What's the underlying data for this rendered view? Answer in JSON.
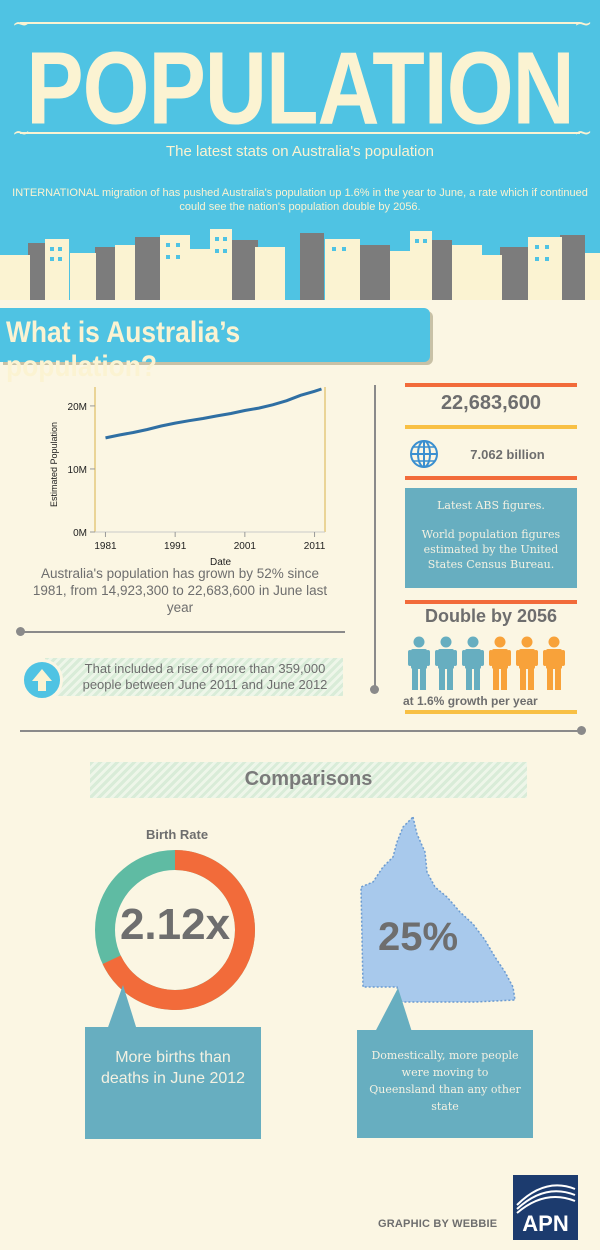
{
  "header": {
    "title": "POPULATION",
    "subtitle": "The latest stats on Australia's population",
    "intro": "INTERNATIONAL migration of has pushed Australia's population up 1.6% in the year to June, a rate which if continued could see the nation's population double by 2056."
  },
  "section": {
    "title": "What is Australia’s population?"
  },
  "chart_data": {
    "type": "line",
    "xlabel": "Date",
    "ylabel": "Estimated Population",
    "x_ticks": [
      "1981",
      "1991",
      "2001",
      "2011"
    ],
    "y_ticks": [
      "0M",
      "10M",
      "20M"
    ],
    "ylim": [
      0,
      23000000
    ],
    "xlim": [
      1979.5,
      2012.5
    ],
    "x": [
      1981,
      1983,
      1985,
      1987,
      1989,
      1991,
      1993,
      1995,
      1997,
      1999,
      2001,
      2003,
      2005,
      2007,
      2009,
      2011,
      2012
    ],
    "values": [
      14923300,
      15380000,
      15790000,
      16260000,
      16810000,
      17280000,
      17660000,
      18000000,
      18420000,
      18790000,
      19270000,
      19650000,
      20180000,
      20830000,
      21690000,
      22320000,
      22683600
    ],
    "series_color": "#2f6fa3"
  },
  "chart_caption": "Australia's population has grown by 52% since 1981, from 14,923,300 to 22,683,600 in June last year",
  "rise_text": "That included a rise of more than 359,000 people between June 2011 and June 2012",
  "stats": {
    "population": "22,683,600",
    "world_population": "7.062 billion",
    "note_line1": "Latest ABS figures.",
    "note_line2": "World population figures estimated by the United States Census Bureau.",
    "double_title": "Double by 2056",
    "rate_text": "at 1.6%  growth per year",
    "people_colors": [
      "#67aec0",
      "#67aec0",
      "#67aec0",
      "#f8a23a",
      "#f8a23a",
      "#f8a23a"
    ]
  },
  "comparisons": {
    "title": "Comparisons",
    "birth_rate_label": "Birth Rate",
    "birth_rate_value": "2.12x",
    "birth_rate_fraction": 0.68,
    "births_text": "More births than deaths in June 2012",
    "qld_value": "25%",
    "qld_text": "Domestically, more people were moving to Queensland than any other state"
  },
  "footer": {
    "credit": "GRAPHIC BY WEBBIE",
    "logo_text": "APN"
  },
  "colors": {
    "accent_blue": "#4fc3e3",
    "teal": "#67aec0",
    "orange": "#f26b3a",
    "yellow": "#f8c044",
    "green_donut": "#5fbba3",
    "cream": "#fbf6e3"
  }
}
